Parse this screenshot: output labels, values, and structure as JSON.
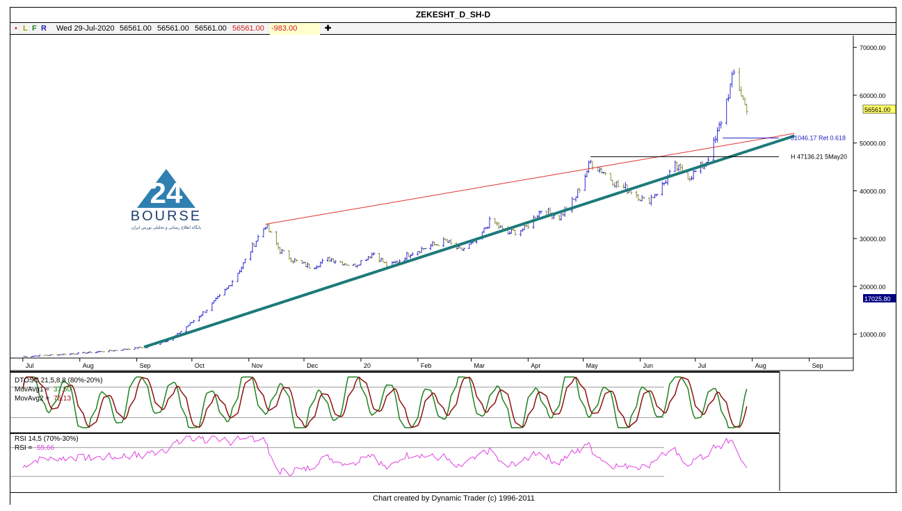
{
  "title": "ZEKESHT_D_SH-D",
  "infobar": {
    "dot": "•",
    "l": "L",
    "f": "F",
    "r": "R",
    "date": "Wed 29-Jul-2020",
    "open": "56561.00",
    "high": "56561.00",
    "low": "56561.00",
    "close": "56561.00",
    "change": "-983.00",
    "plus": "✚"
  },
  "logo": {
    "name": "BOURSE",
    "tagline": "پایگاه اطلاع رسانی و تحلیلی بورس ایران"
  },
  "footer": "Chart created by Dynamic Trader  (c) 1996-2011",
  "colors": {
    "up": "#2a2ad0",
    "down": "#8a8a3a",
    "trend_teal": "#1d7a7a",
    "resistance_red": "#e03030",
    "dt_fast": "#208020",
    "dt_slow": "#8a1010",
    "rsi": "#e040e0"
  },
  "chart_data": [
    {
      "type": "ohlc",
      "name": "price",
      "x_axis_labels": [
        "Jul",
        "Aug",
        "Sep",
        "Oct",
        "Nov",
        "Dec",
        "20",
        "Feb",
        "Mar",
        "Apr",
        "May",
        "Jun",
        "Jul",
        "Aug",
        "Sep"
      ],
      "y_ticks": [
        "70000.00",
        "60000.00",
        "50000.00",
        "40000.00",
        "30000.00",
        "20000.00",
        "10000.00"
      ],
      "ylim": [
        5000,
        72500
      ],
      "last_price_label": "56561.00",
      "low_label": "17025.80",
      "close_path": [
        [
          "2019-07-01",
          5300
        ],
        [
          "2019-07-15",
          5600
        ],
        [
          "2019-08-01",
          6000
        ],
        [
          "2019-08-20",
          6600
        ],
        [
          "2019-09-05",
          7300
        ],
        [
          "2019-09-20",
          9000
        ],
        [
          "2019-10-01",
          12500
        ],
        [
          "2019-10-10",
          15500
        ],
        [
          "2019-10-20",
          19500
        ],
        [
          "2019-10-28",
          24000
        ],
        [
          "2019-11-04",
          29000
        ],
        [
          "2019-11-10",
          32800
        ],
        [
          "2019-11-18",
          27500
        ],
        [
          "2019-11-25",
          25500
        ],
        [
          "2019-12-05",
          24000
        ],
        [
          "2019-12-15",
          25800
        ],
        [
          "2019-12-28",
          24300
        ],
        [
          "2020-01-08",
          27000
        ],
        [
          "2020-01-16",
          24000
        ],
        [
          "2020-01-28",
          27000
        ],
        [
          "2020-02-08",
          28500
        ],
        [
          "2020-02-16",
          29500
        ],
        [
          "2020-02-24",
          27500
        ],
        [
          "2020-03-04",
          29500
        ],
        [
          "2020-03-12",
          34000
        ],
        [
          "2020-03-20",
          31000
        ],
        [
          "2020-03-30",
          32000
        ],
        [
          "2020-04-08",
          36000
        ],
        [
          "2020-04-18",
          34500
        ],
        [
          "2020-04-26",
          38000
        ],
        [
          "2020-05-05",
          46000
        ],
        [
          "2020-05-12",
          44000
        ],
        [
          "2020-05-20",
          41000
        ],
        [
          "2020-05-28",
          40000
        ],
        [
          "2020-06-04",
          37500
        ],
        [
          "2020-06-12",
          40500
        ],
        [
          "2020-06-20",
          45000
        ],
        [
          "2020-06-28",
          43000
        ],
        [
          "2020-07-06",
          45500
        ],
        [
          "2020-07-12",
          50500
        ],
        [
          "2020-07-18",
          59000
        ],
        [
          "2020-07-22",
          64500
        ],
        [
          "2020-07-25",
          61500
        ],
        [
          "2020-07-29",
          56561
        ]
      ],
      "annotations": [
        {
          "label": "51046.17 Ret 0.618",
          "y": 51046.17,
          "x_from": "2020-07-16"
        },
        {
          "label": "H 47136.21 5May20",
          "y": 47136.21,
          "x_from": "2020-05-05"
        }
      ],
      "trendlines": [
        {
          "name": "support",
          "from": [
            "2019-09-05",
            7300
          ],
          "to": [
            "2020-08-24",
            51500
          ]
        },
        {
          "name": "resistance",
          "from": [
            "2019-11-10",
            33000
          ],
          "to": [
            "2020-08-24",
            52000
          ]
        }
      ]
    },
    {
      "type": "line",
      "name": "dtosc",
      "labels": [
        "DTOSC 21,5,8,8 (80%-20%)",
        "MovAvg1 =",
        "37.50",
        "MovAvg2 =",
        "75.13"
      ],
      "levels": [
        80,
        20
      ],
      "ylim": [
        -8,
        110
      ]
    },
    {
      "type": "line",
      "name": "rsi",
      "labels": [
        "RSI 14,5 (70%-30%)",
        "RSI =",
        "55.66"
      ],
      "levels": [
        70,
        30
      ],
      "ylim": [
        10,
        90
      ]
    }
  ]
}
